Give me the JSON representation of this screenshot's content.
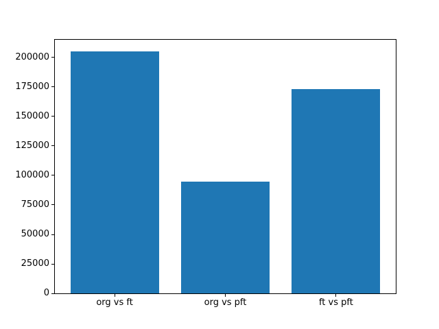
{
  "chart_data": {
    "type": "bar",
    "categories": [
      "org vs ft",
      "org vs pft",
      "ft vs pft"
    ],
    "values": [
      205000,
      95000,
      173000
    ],
    "title": "",
    "xlabel": "",
    "ylabel": "",
    "ylim": [
      0,
      215000
    ],
    "yticks": [
      0,
      25000,
      50000,
      75000,
      100000,
      125000,
      150000,
      175000,
      200000
    ],
    "bar_color": "#1f77b4",
    "spine_color": "#000000",
    "tick_label_color": "#000000",
    "background_color": "#ffffff",
    "grid": false,
    "legend": false
  }
}
